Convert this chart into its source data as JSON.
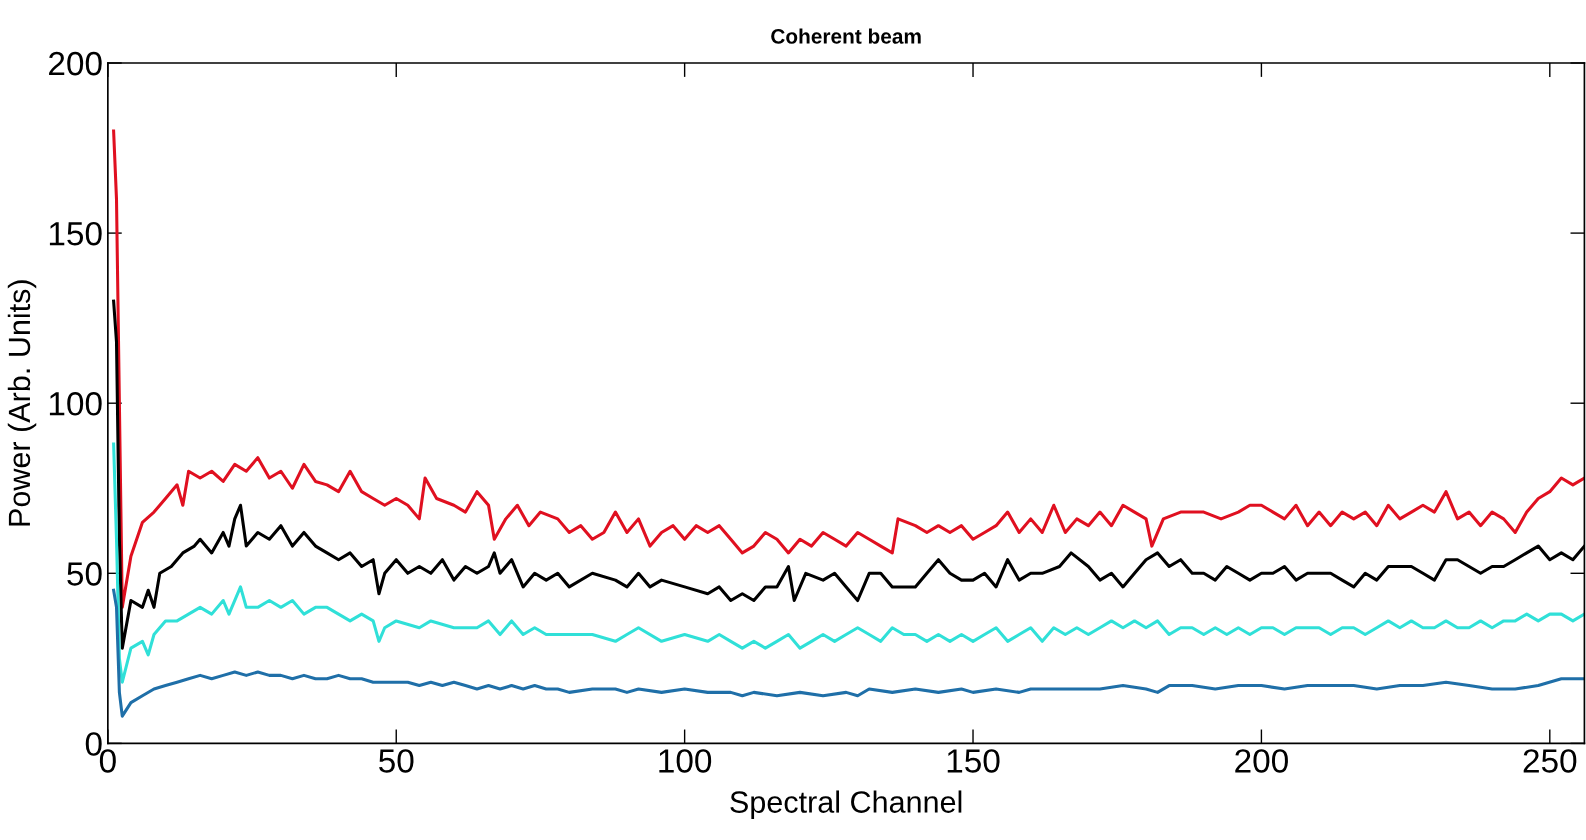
{
  "chart_data": {
    "type": "line",
    "title": "Coherent beam",
    "xlabel": "Spectral Channel",
    "ylabel": "Power (Arb. Units)",
    "xlim": [
      0,
      256
    ],
    "xticks": [
      0,
      50,
      100,
      150,
      200,
      250
    ],
    "ylim": [
      0,
      200
    ],
    "yticks": [
      0,
      50,
      100,
      150,
      200
    ],
    "grid": false,
    "legend": false,
    "marker": "none",
    "line_style": "solid",
    "series": [
      {
        "color": "#e01020",
        "x": [
          1,
          1.5,
          2,
          2.5,
          4,
          6,
          8,
          10,
          12,
          13,
          14,
          16,
          18,
          20,
          22,
          24,
          26,
          28,
          30,
          32,
          34,
          36,
          38,
          40,
          42,
          44,
          46,
          48,
          50,
          52,
          54,
          55,
          57,
          60,
          62,
          64,
          66,
          67,
          69,
          71,
          73,
          75,
          78,
          80,
          82,
          84,
          86,
          88,
          90,
          92,
          94,
          96,
          98,
          100,
          102,
          104,
          106,
          108,
          110,
          112,
          114,
          116,
          118,
          120,
          122,
          124,
          126,
          128,
          130,
          132,
          134,
          136,
          137,
          140,
          142,
          144,
          146,
          148,
          150,
          152,
          154,
          156,
          158,
          160,
          162,
          164,
          166,
          168,
          170,
          172,
          174,
          176,
          178,
          180,
          181,
          183,
          186,
          190,
          193,
          196,
          198,
          200,
          202,
          204,
          206,
          208,
          210,
          212,
          214,
          216,
          218,
          220,
          222,
          224,
          226,
          228,
          230,
          232,
          234,
          236,
          238,
          240,
          242,
          244,
          246,
          248,
          250,
          252,
          254,
          256
        ],
        "values": [
          180,
          160,
          100,
          40,
          55,
          65,
          68,
          72,
          76,
          70,
          80,
          78,
          80,
          77,
          82,
          80,
          84,
          78,
          80,
          75,
          82,
          77,
          76,
          74,
          80,
          74,
          72,
          70,
          72,
          70,
          66,
          78,
          72,
          70,
          68,
          74,
          70,
          60,
          66,
          70,
          64,
          68,
          66,
          62,
          64,
          60,
          62,
          68,
          62,
          66,
          58,
          62,
          64,
          60,
          64,
          62,
          64,
          60,
          56,
          58,
          62,
          60,
          56,
          60,
          58,
          62,
          60,
          58,
          62,
          60,
          58,
          56,
          66,
          64,
          62,
          64,
          62,
          64,
          60,
          62,
          64,
          68,
          62,
          66,
          62,
          70,
          62,
          66,
          64,
          68,
          64,
          70,
          68,
          66,
          58,
          66,
          68,
          68,
          66,
          68,
          70,
          70,
          68,
          66,
          70,
          64,
          68,
          64,
          68,
          66,
          68,
          64,
          70,
          66,
          68,
          70,
          68,
          74,
          66,
          68,
          64,
          68,
          66,
          62,
          68,
          72,
          74,
          78,
          76,
          78
        ]
      },
      {
        "color": "#000000",
        "x": [
          1,
          1.5,
          2,
          2.5,
          4,
          6,
          7,
          8,
          9,
          11,
          13,
          15,
          16,
          18,
          20,
          21,
          22,
          23,
          24,
          26,
          28,
          30,
          32,
          34,
          36,
          38,
          40,
          42,
          44,
          46,
          47,
          48,
          50,
          52,
          54,
          56,
          58,
          60,
          62,
          64,
          66,
          67,
          68,
          70,
          72,
          74,
          76,
          78,
          80,
          84,
          88,
          90,
          92,
          94,
          96,
          100,
          104,
          106,
          108,
          110,
          112,
          114,
          116,
          118,
          119,
          121,
          124,
          126,
          128,
          130,
          132,
          134,
          136,
          138,
          140,
          142,
          144,
          146,
          148,
          150,
          152,
          154,
          156,
          158,
          160,
          162,
          165,
          167,
          170,
          172,
          174,
          176,
          178,
          180,
          182,
          184,
          186,
          188,
          190,
          192,
          194,
          196,
          198,
          200,
          202,
          204,
          206,
          208,
          210,
          212,
          214,
          216,
          218,
          220,
          222,
          224,
          226,
          228,
          230,
          232,
          234,
          236,
          238,
          240,
          242,
          244,
          246,
          248,
          250,
          252,
          254,
          256
        ],
        "values": [
          130,
          118,
          60,
          28,
          42,
          40,
          45,
          40,
          50,
          52,
          56,
          58,
          60,
          56,
          62,
          58,
          66,
          70,
          58,
          62,
          60,
          64,
          58,
          62,
          58,
          56,
          54,
          56,
          52,
          54,
          44,
          50,
          54,
          50,
          52,
          50,
          54,
          48,
          52,
          50,
          52,
          56,
          50,
          54,
          46,
          50,
          48,
          50,
          46,
          50,
          48,
          46,
          50,
          46,
          48,
          46,
          44,
          46,
          42,
          44,
          42,
          46,
          46,
          52,
          42,
          50,
          48,
          50,
          46,
          42,
          50,
          50,
          46,
          46,
          46,
          50,
          54,
          50,
          48,
          48,
          50,
          46,
          54,
          48,
          50,
          50,
          52,
          56,
          52,
          48,
          50,
          46,
          50,
          54,
          56,
          52,
          54,
          50,
          50,
          48,
          52,
          50,
          48,
          50,
          50,
          52,
          48,
          50,
          50,
          50,
          48,
          46,
          50,
          48,
          52,
          52,
          52,
          50,
          48,
          54,
          54,
          52,
          50,
          52,
          52,
          54,
          56,
          58,
          54,
          56,
          54,
          58
        ]
      },
      {
        "color": "#30e0d8",
        "x": [
          1,
          1.5,
          2,
          2.5,
          4,
          6,
          7,
          8,
          10,
          12,
          14,
          16,
          18,
          20,
          21,
          23,
          24,
          26,
          28,
          30,
          32,
          34,
          36,
          38,
          40,
          42,
          44,
          46,
          47,
          48,
          50,
          54,
          56,
          60,
          64,
          66,
          68,
          70,
          72,
          74,
          76,
          80,
          84,
          88,
          90,
          92,
          96,
          100,
          104,
          106,
          108,
          110,
          112,
          114,
          116,
          118,
          120,
          122,
          124,
          126,
          128,
          130,
          132,
          134,
          136,
          138,
          140,
          142,
          144,
          146,
          148,
          150,
          152,
          154,
          156,
          158,
          160,
          162,
          164,
          166,
          168,
          170,
          172,
          174,
          176,
          178,
          180,
          182,
          184,
          186,
          188,
          190,
          192,
          194,
          196,
          198,
          200,
          202,
          204,
          206,
          208,
          210,
          212,
          214,
          216,
          218,
          220,
          222,
          224,
          226,
          228,
          230,
          232,
          234,
          236,
          238,
          240,
          242,
          244,
          246,
          248,
          250,
          252,
          254,
          256
        ],
        "values": [
          88,
          60,
          25,
          18,
          28,
          30,
          26,
          32,
          36,
          36,
          38,
          40,
          38,
          42,
          38,
          46,
          40,
          40,
          42,
          40,
          42,
          38,
          40,
          40,
          38,
          36,
          38,
          36,
          30,
          34,
          36,
          34,
          36,
          34,
          34,
          36,
          32,
          36,
          32,
          34,
          32,
          32,
          32,
          30,
          32,
          34,
          30,
          32,
          30,
          32,
          30,
          28,
          30,
          28,
          30,
          32,
          28,
          30,
          32,
          30,
          32,
          34,
          32,
          30,
          34,
          32,
          32,
          30,
          32,
          30,
          32,
          30,
          32,
          34,
          30,
          32,
          34,
          30,
          34,
          32,
          34,
          32,
          34,
          36,
          34,
          36,
          34,
          36,
          32,
          34,
          34,
          32,
          34,
          32,
          34,
          32,
          34,
          34,
          32,
          34,
          34,
          34,
          32,
          34,
          34,
          32,
          34,
          36,
          34,
          36,
          34,
          34,
          36,
          34,
          34,
          36,
          34,
          36,
          36,
          38,
          36,
          38,
          38,
          36,
          38
        ]
      },
      {
        "color": "#1f6fa8",
        "x": [
          1,
          1.5,
          2,
          2.5,
          4,
          6,
          8,
          10,
          12,
          14,
          16,
          18,
          20,
          22,
          24,
          26,
          28,
          30,
          32,
          34,
          36,
          38,
          40,
          42,
          44,
          46,
          48,
          50,
          52,
          54,
          56,
          58,
          60,
          62,
          64,
          66,
          68,
          70,
          72,
          74,
          76,
          78,
          80,
          84,
          88,
          90,
          92,
          96,
          100,
          104,
          108,
          110,
          112,
          116,
          120,
          124,
          128,
          130,
          132,
          136,
          140,
          144,
          148,
          150,
          154,
          158,
          160,
          164,
          168,
          172,
          176,
          180,
          182,
          184,
          188,
          192,
          196,
          200,
          204,
          208,
          212,
          216,
          220,
          224,
          228,
          232,
          236,
          240,
          244,
          248,
          252,
          256
        ],
        "values": [
          45,
          40,
          15,
          8,
          12,
          14,
          16,
          17,
          18,
          19,
          20,
          19,
          20,
          21,
          20,
          21,
          20,
          20,
          19,
          20,
          19,
          19,
          20,
          19,
          19,
          18,
          18,
          18,
          18,
          17,
          18,
          17,
          18,
          17,
          16,
          17,
          16,
          17,
          16,
          17,
          16,
          16,
          15,
          16,
          16,
          15,
          16,
          15,
          16,
          15,
          15,
          14,
          15,
          14,
          15,
          14,
          15,
          14,
          16,
          15,
          16,
          15,
          16,
          15,
          16,
          15,
          16,
          16,
          16,
          16,
          17,
          16,
          15,
          17,
          17,
          16,
          17,
          17,
          16,
          17,
          17,
          17,
          16,
          17,
          17,
          18,
          17,
          16,
          16,
          17,
          19,
          19
        ]
      }
    ]
  }
}
